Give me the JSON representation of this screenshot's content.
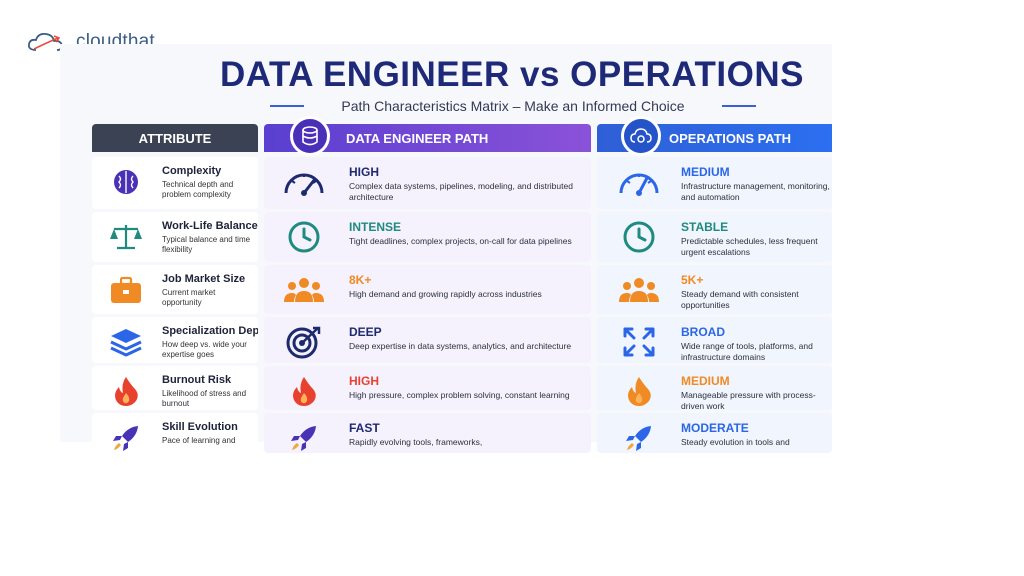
{
  "brand": {
    "logo_text": "cloudthat"
  },
  "title": "DATA ENGINEER vs OPERATIONS",
  "subtitle": "Path Characteristics Matrix – Make an Informed Choice",
  "headers": {
    "attribute": "ATTRIBUTE",
    "data_engineer": "DATA ENGINEER PATH",
    "operations": "OPERATIONS PATH"
  },
  "rows": [
    {
      "attribute": "Complexity",
      "attribute_desc": "Technical depth and problem complexity",
      "attribute_icon": "brain-icon",
      "de_label": "HIGH",
      "de_desc": "Complex data systems, pipelines, modeling, and distributed architecture",
      "de_icon": "gauge-high-icon",
      "ops_label": "MEDIUM",
      "ops_desc": "Infrastructure management, monitoring, and automation",
      "ops_icon": "gauge-medium-icon"
    },
    {
      "attribute": "Work-Life Balance",
      "attribute_desc": "Typical balance and time flexibility",
      "attribute_icon": "scales-icon",
      "de_label": "INTENSE",
      "de_desc": "Tight deadlines, complex projects, on-call for data pipelines",
      "de_icon": "clock-icon",
      "ops_label": "STABLE",
      "ops_desc": "Predictable schedules, less frequent urgent escalations",
      "ops_icon": "clock-icon"
    },
    {
      "attribute": "Job Market Size",
      "attribute_desc": "Current market opportunity",
      "attribute_icon": "briefcase-icon",
      "de_label": "8K+",
      "de_desc": "High demand and growing rapidly across industries",
      "de_icon": "people-group-icon",
      "ops_label": "5K+",
      "ops_desc": "Steady demand with consistent opportunities",
      "ops_icon": "people-group-icon"
    },
    {
      "attribute": "Specialization Depth",
      "attribute_desc": "How deep vs. wide your expertise goes",
      "attribute_icon": "layers-icon",
      "de_label": "DEEP",
      "de_desc": "Deep expertise in data systems, analytics, and architecture",
      "de_icon": "target-icon",
      "ops_label": "BROAD",
      "ops_desc": "Wide range of tools, platforms, and infrastructure domains",
      "ops_icon": "expand-arrows-icon"
    },
    {
      "attribute": "Burnout Risk",
      "attribute_desc": "Likelihood of stress and burnout",
      "attribute_icon": "flame-icon",
      "de_label": "HIGH",
      "de_desc": "High pressure, complex problem solving, constant learning",
      "de_icon": "flame-icon",
      "ops_label": "MEDIUM",
      "ops_desc": "Manageable pressure with process-driven work",
      "ops_icon": "flame-icon"
    },
    {
      "attribute": "Skill Evolution",
      "attribute_desc": "Pace of learning and",
      "attribute_icon": "rocket-icon",
      "de_label": "FAST",
      "de_desc": "Rapidly evolving tools, frameworks,",
      "de_icon": "rocket-icon",
      "ops_label": "MODERATE",
      "ops_desc": "Steady evolution in tools and",
      "ops_icon": "rocket-icon"
    }
  ],
  "colors": {
    "title": "#1e2a78",
    "de_header": "#6a45d6",
    "ops_header": "#2c66e8",
    "attr_header": "#3b4253",
    "navy_icon": "#1e2a6e",
    "teal": "#1f8a80",
    "orange": "#f08a24",
    "red_flame": "#e8412e",
    "purple_icon": "#4a32b6",
    "blue_icon": "#2c66e8"
  }
}
